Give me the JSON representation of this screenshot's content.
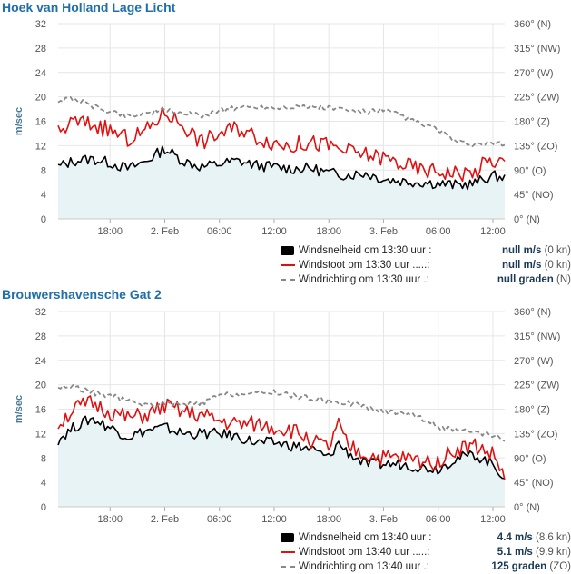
{
  "colors": {
    "title": "#1f6fa8",
    "wind": "#000000",
    "gust": "#e01010",
    "direction": "#888888",
    "fill": "#e8f3f6",
    "grid": "#e6e6e6"
  },
  "stations": [
    {
      "title": "Hoek van Holland Lage Licht",
      "legend": [
        {
          "label": "Windsnelheid om 13:30 uur :",
          "value": "null m/s",
          "extra": "(0 kn)"
        },
        {
          "label": "Windstoot om 13:30 uur .....:",
          "value": "null m/s",
          "extra": "(0 kn)"
        },
        {
          "label": "Windrichting om 13:30 uur .:",
          "value": "null graden",
          "extra": "(N)"
        }
      ]
    },
    {
      "title": "Brouwershavensche Gat 2",
      "legend": [
        {
          "label": "Windsnelheid om 13:40 uur :",
          "value": "4.4 m/s",
          "extra": "(8.6 kn)"
        },
        {
          "label": "Windstoot om 13:40 uur .....:",
          "value": "5.1 m/s",
          "extra": "(9.9 kn)"
        },
        {
          "label": "Windrichting om 13:40 uur .:",
          "value": "125 graden",
          "extra": "(ZO)"
        }
      ]
    }
  ],
  "chart_data": [
    {
      "type": "line",
      "title": "Hoek van Holland Lage Licht",
      "ylabel": "m/sec",
      "ylim": [
        0,
        32
      ],
      "y_ticks": [
        "0",
        "4",
        "8",
        "12",
        "16",
        "20",
        "24",
        "28",
        "32"
      ],
      "y2_ticks": [
        "0° (N)",
        "45° (NO)",
        "90° (O)",
        "135° (ZO)",
        "180° (Z)",
        "225° (ZW)",
        "270° (W)",
        "315° (NW)",
        "360° (N)"
      ],
      "y2lim": [
        0,
        360
      ],
      "x_ticks": [
        "18:00",
        "2. Feb",
        "06:00",
        "12:00",
        "18:00",
        "3. Feb",
        "06:00",
        "12:00"
      ],
      "x_tick_hours": [
        18,
        24,
        30,
        36,
        42,
        48,
        54,
        60
      ],
      "xlim": [
        12.3,
        61.3
      ],
      "grid": true,
      "series": [
        {
          "name": "Windsnelheid",
          "x": [
            12.3,
            14,
            16,
            18,
            20,
            22,
            24,
            26,
            28,
            30,
            32,
            34,
            36,
            38,
            40,
            42,
            44,
            46,
            48,
            50,
            52,
            54,
            56,
            58,
            59,
            60,
            61.3
          ],
          "values": [
            8.5,
            9.5,
            9.8,
            9.2,
            8.2,
            9.5,
            11.5,
            9.5,
            8.5,
            9.0,
            9.5,
            8.8,
            8.5,
            8.2,
            8.3,
            7.5,
            7.2,
            7.5,
            6.5,
            6.2,
            6.0,
            5.8,
            5.5,
            5.8,
            6.5,
            7.0,
            6.8
          ]
        },
        {
          "name": "Windstoot",
          "x": [
            12.3,
            14,
            16,
            18,
            20,
            22,
            24,
            26,
            28,
            30,
            32,
            34,
            36,
            38,
            40,
            42,
            44,
            46,
            48,
            50,
            52,
            54,
            56,
            58,
            59,
            60,
            61.3
          ],
          "values": [
            14.0,
            16.0,
            15.5,
            14.5,
            13.0,
            14.5,
            17.5,
            15.5,
            12.5,
            14.0,
            15.0,
            13.5,
            12.5,
            12.0,
            12.5,
            12.0,
            11.0,
            10.5,
            10.0,
            9.0,
            8.0,
            7.8,
            7.5,
            7.5,
            9.0,
            9.5,
            9.2
          ]
        },
        {
          "name": "Windrichting",
          "axis": "y2",
          "x": [
            12.3,
            14,
            16,
            18,
            20,
            22,
            24,
            26,
            28,
            30,
            32,
            34,
            36,
            38,
            40,
            42,
            44,
            46,
            48,
            50,
            52,
            54,
            56,
            58,
            60,
            61.3
          ],
          "values": [
            218,
            222,
            208,
            198,
            190,
            195,
            200,
            195,
            190,
            200,
            205,
            207,
            205,
            207,
            206,
            205,
            200,
            197,
            200,
            190,
            175,
            165,
            140,
            137,
            138,
            137
          ]
        }
      ]
    },
    {
      "type": "line",
      "title": "Brouwershavensche Gat 2",
      "ylabel": "m/sec",
      "ylim": [
        0,
        32
      ],
      "y_ticks": [
        "0",
        "4",
        "8",
        "12",
        "16",
        "20",
        "24",
        "28",
        "32"
      ],
      "y2_ticks": [
        "0° (N)",
        "45° (NO)",
        "90° (O)",
        "135° (ZO)",
        "180° (Z)",
        "225° (ZW)",
        "270° (W)",
        "315° (NW)",
        "360° (N)"
      ],
      "y2lim": [
        0,
        360
      ],
      "x_ticks": [
        "18:00",
        "2. Feb",
        "06:00",
        "12:00",
        "18:00",
        "3. Feb",
        "06:00",
        "12:00"
      ],
      "x_tick_hours": [
        18,
        24,
        30,
        36,
        42,
        48,
        54,
        60
      ],
      "xlim": [
        12.3,
        61.3
      ],
      "grid": true,
      "series": [
        {
          "name": "Windsnelheid",
          "x": [
            12.3,
            14,
            16,
            18,
            20,
            22,
            24,
            26,
            28,
            30,
            32,
            34,
            36,
            38,
            40,
            42,
            43,
            44,
            46,
            48,
            50,
            52,
            54,
            56,
            58,
            60,
            61.3
          ],
          "values": [
            11.0,
            13.0,
            14.5,
            13.0,
            11.5,
            12.5,
            13.0,
            12.0,
            12.0,
            12.0,
            11.5,
            10.5,
            10.5,
            10.0,
            9.5,
            8.0,
            10.5,
            9.0,
            7.0,
            7.0,
            7.0,
            6.5,
            6.2,
            8.0,
            8.5,
            7.0,
            4.8
          ]
        },
        {
          "name": "Windstoot",
          "x": [
            12.3,
            14,
            16,
            18,
            20,
            22,
            24,
            26,
            28,
            30,
            32,
            34,
            36,
            38,
            40,
            42,
            43,
            44,
            46,
            48,
            50,
            52,
            54,
            56,
            58,
            60,
            61.3
          ],
          "values": [
            13.5,
            16.0,
            17.0,
            15.5,
            14.5,
            15.0,
            16.5,
            15.5,
            15.0,
            14.0,
            13.5,
            13.5,
            13.0,
            12.5,
            11.0,
            9.5,
            13.5,
            10.0,
            8.5,
            8.0,
            8.0,
            7.5,
            7.5,
            9.5,
            10.0,
            8.5,
            5.0
          ]
        },
        {
          "name": "Windrichting",
          "axis": "y2",
          "x": [
            12.3,
            14,
            16,
            18,
            20,
            22,
            24,
            26,
            28,
            30,
            32,
            34,
            36,
            38,
            40,
            42,
            44,
            46,
            48,
            50,
            52,
            54,
            56,
            58,
            60,
            61.3
          ],
          "values": [
            220,
            222,
            210,
            205,
            195,
            188,
            190,
            188,
            190,
            205,
            208,
            208,
            212,
            205,
            200,
            195,
            192,
            185,
            175,
            175,
            165,
            148,
            140,
            137,
            130,
            125
          ]
        }
      ]
    }
  ]
}
